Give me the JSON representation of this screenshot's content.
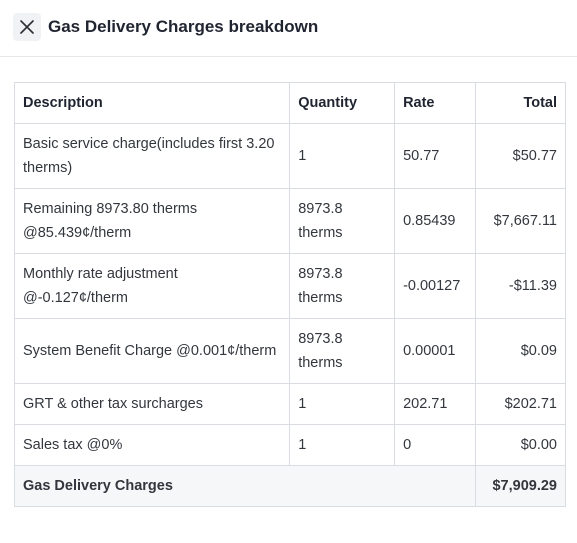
{
  "header": {
    "title": "Gas Delivery Charges breakdown",
    "close_icon": "close-icon"
  },
  "table": {
    "columns": [
      "Description",
      "Quantity",
      "Rate",
      "Total"
    ],
    "rows": [
      {
        "description": "Basic service charge(includes first 3.20 therms)",
        "quantity": "1",
        "rate": "50.77",
        "total": "$50.77"
      },
      {
        "description": "Remaining 8973.80 therms @85.439¢/therm",
        "quantity": "8973.8 therms",
        "rate": "0.85439",
        "total": "$7,667.11"
      },
      {
        "description": "Monthly rate adjustment @-0.127¢/therm",
        "quantity": "8973.8 therms",
        "rate": "-0.00127",
        "total": "-$11.39"
      },
      {
        "description": "System Benefit Charge @0.001¢/therm",
        "quantity": "8973.8 therms",
        "rate": "0.00001",
        "total": "$0.09"
      },
      {
        "description": "GRT & other tax surcharges",
        "quantity": "1",
        "rate": "202.71",
        "total": "$202.71"
      },
      {
        "description": "Sales tax @0%",
        "quantity": "1",
        "rate": "0",
        "total": "$0.00"
      }
    ],
    "footer": {
      "label": "Gas Delivery Charges",
      "total": "$7,909.29"
    }
  },
  "colors": {
    "border": "#d9dce1",
    "footer_bg": "#f6f7f9",
    "close_bg": "#f1f2f4"
  }
}
